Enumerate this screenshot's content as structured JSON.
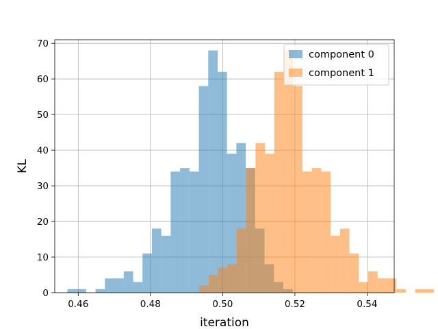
{
  "chart_data": {
    "type": "bar",
    "title": "",
    "xlabel": "iteration",
    "ylabel": "KL",
    "xlim": [
      0.4535,
      0.5475
    ],
    "ylim": [
      0,
      71
    ],
    "grid": true,
    "legend_position": "top-right",
    "x_ticks": [
      "0.46",
      "0.48",
      "0.50",
      "0.52",
      "0.54"
    ],
    "y_ticks": [
      "0",
      "10",
      "20",
      "30",
      "40",
      "50",
      "60",
      "70"
    ],
    "series": [
      {
        "name": "component 0",
        "color": "#1f77b4",
        "bin_start": 0.457,
        "bin_width": 0.0026,
        "counts": [
          1,
          1,
          0,
          1,
          4,
          4,
          6,
          3,
          11,
          18,
          16,
          34,
          35,
          34,
          58,
          68,
          62,
          39,
          42,
          35,
          18,
          8,
          3,
          1
        ]
      },
      {
        "name": "component 1",
        "color": "#ff7f0e",
        "bin_start": 0.4935,
        "bin_width": 0.0026,
        "counts": [
          2,
          5,
          7,
          8,
          18,
          35,
          42,
          39,
          62,
          68,
          58,
          34,
          35,
          34,
          16,
          18,
          11,
          3,
          6,
          4,
          4,
          1,
          0,
          1,
          1
        ]
      }
    ]
  }
}
